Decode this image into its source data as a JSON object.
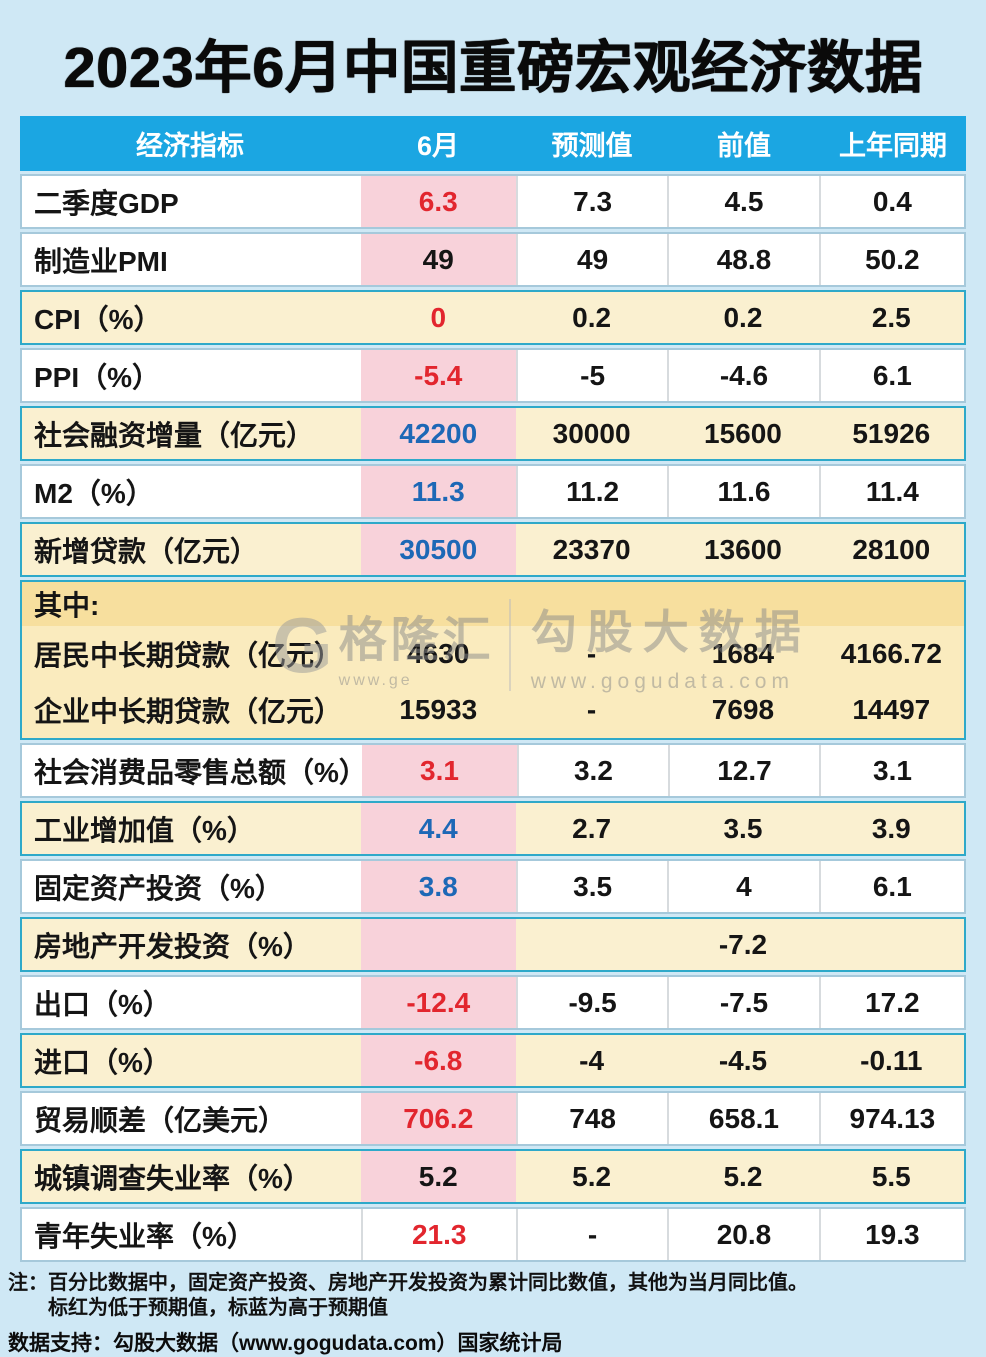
{
  "title": "2023年6月中国重磅宏观经济数据",
  "chart_data": {
    "type": "table",
    "title": "2023年6月中国重磅宏观经济数据",
    "columns": [
      "经济指标",
      "6月",
      "预测值",
      "前值",
      "上年同期"
    ],
    "rows": [
      {
        "indicator": "二季度GDP",
        "values": [
          "6.3",
          "7.3",
          "4.5",
          "0.4"
        ],
        "row_bg": "white",
        "jun_cell_pink": true,
        "jun_value_color": "red"
      },
      {
        "indicator": "制造业PMI",
        "values": [
          "49",
          "49",
          "48.8",
          "50.2"
        ],
        "row_bg": "white",
        "jun_cell_pink": true,
        "jun_value_color": "black"
      },
      {
        "indicator": "CPI（%）",
        "values": [
          "0",
          "0.2",
          "0.2",
          "2.5"
        ],
        "row_bg": "cream",
        "jun_cell_pink": false,
        "jun_value_color": "red"
      },
      {
        "indicator": "PPI（%）",
        "values": [
          "-5.4",
          "-5",
          "-4.6",
          "6.1"
        ],
        "row_bg": "white",
        "jun_cell_pink": true,
        "jun_value_color": "red"
      },
      {
        "indicator": "社会融资增量（亿元）",
        "values": [
          "42200",
          "30000",
          "15600",
          "51926"
        ],
        "row_bg": "cream",
        "jun_cell_pink": true,
        "jun_value_color": "blue"
      },
      {
        "indicator": "M2（%）",
        "values": [
          "11.3",
          "11.2",
          "11.6",
          "11.4"
        ],
        "row_bg": "white",
        "jun_cell_pink": true,
        "jun_value_color": "blue"
      },
      {
        "indicator": "新增贷款（亿元）",
        "values": [
          "30500",
          "23370",
          "13600",
          "28100"
        ],
        "row_bg": "cream",
        "jun_cell_pink": true,
        "jun_value_color": "blue"
      },
      {
        "group_label": "其中:",
        "children": [
          {
            "indicator": "居民中长期贷款（亿元）",
            "values": [
              "4630",
              "-",
              "1684",
              "4166.72"
            ],
            "jun_value_color": "black"
          },
          {
            "indicator": "企业中长期贷款（亿元）",
            "values": [
              "15933",
              "-",
              "7698",
              "14497"
            ],
            "jun_value_color": "black"
          }
        ]
      },
      {
        "indicator": "社会消费品零售总额（%）",
        "values": [
          "3.1",
          "3.2",
          "12.7",
          "3.1"
        ],
        "row_bg": "white",
        "jun_cell_pink": true,
        "jun_value_color": "red"
      },
      {
        "indicator": "工业增加值（%）",
        "values": [
          "4.4",
          "2.7",
          "3.5",
          "3.9"
        ],
        "row_bg": "cream",
        "jun_cell_pink": true,
        "jun_value_color": "blue"
      },
      {
        "indicator": "固定资产投资（%）",
        "values": [
          "3.8",
          "3.5",
          "4",
          "6.1"
        ],
        "row_bg": "white",
        "jun_cell_pink": true,
        "jun_value_color": "blue"
      },
      {
        "indicator": "房地产开发投资（%）",
        "values": [
          "",
          "",
          "-7.2",
          ""
        ],
        "row_bg": "cream",
        "jun_cell_pink": true,
        "jun_value_color": "black"
      },
      {
        "indicator": "出口（%）",
        "values": [
          "-12.4",
          "-9.5",
          "-7.5",
          "17.2"
        ],
        "row_bg": "white",
        "jun_cell_pink": true,
        "jun_value_color": "red"
      },
      {
        "indicator": "进口（%）",
        "values": [
          "-6.8",
          "-4",
          "-4.5",
          "-0.11"
        ],
        "row_bg": "cream",
        "jun_cell_pink": true,
        "jun_value_color": "red"
      },
      {
        "indicator": "贸易顺差（亿美元）",
        "values": [
          "706.2",
          "748",
          "658.1",
          "974.13"
        ],
        "row_bg": "white",
        "jun_cell_pink": true,
        "jun_value_color": "red"
      },
      {
        "indicator": "城镇调查失业率（%）",
        "values": [
          "5.2",
          "5.2",
          "5.2",
          "5.5"
        ],
        "row_bg": "cream",
        "jun_cell_pink": true,
        "jun_value_color": "black"
      },
      {
        "indicator": "青年失业率（%）",
        "values": [
          "21.3",
          "-",
          "20.8",
          "19.3"
        ],
        "row_bg": "white",
        "jun_cell_pink": false,
        "jun_value_color": "red"
      }
    ],
    "legend": "标红为低于预期值，标蓝为高于预期值"
  },
  "watermark": {
    "logo_letter": "G",
    "brand": "格隆汇",
    "brand_url": "www.ge",
    "site_name": "勾股大数据",
    "site_url": "www.gogudata.com"
  },
  "footer": {
    "note_label": "注：",
    "note_line1": "百分比数据中，固定资产投资、房地产开发投资为累计同比数值，其他为当月同比值。",
    "note_line2": "标红为低于预期值，标蓝为高于预期值",
    "support": "数据支持：勾股大数据（www.gogudata.com）国家统计局"
  },
  "colors": {
    "page_bg": "#CFE8F5",
    "header_bg": "#1BA6E2",
    "header_text": "#FFFFFF",
    "white_row_bg": "#FFFFFF",
    "cream_row_bg": "#FAF0D0",
    "cream_row_border": "#2EA9C9",
    "june_cell_pink": "#F8D2DA",
    "subgroup_bg": "#FAEBBE",
    "subgroup_strip_bg": "#F7DF9E",
    "below_forecast_red": "#E2262E",
    "above_forecast_blue": "#1D68B6"
  }
}
